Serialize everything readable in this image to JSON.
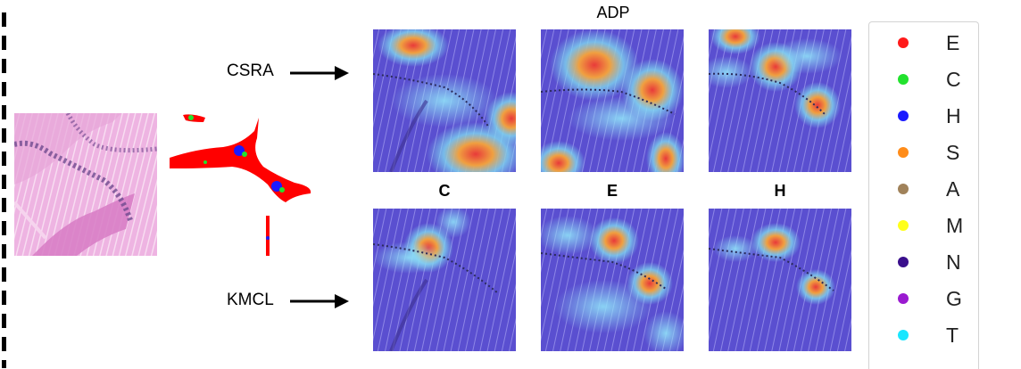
{
  "labels": {
    "method_top": "CSRA",
    "method_bottom": "KMCL",
    "dataset_title": "ADP",
    "subtitles": [
      "C",
      "E",
      "H"
    ]
  },
  "legend": {
    "items": [
      {
        "label": "E",
        "color": "#ff1a1a"
      },
      {
        "label": "C",
        "color": "#22e22e"
      },
      {
        "label": "H",
        "color": "#1a1aff"
      },
      {
        "label": "S",
        "color": "#ff8c1a"
      },
      {
        "label": "A",
        "color": "#a0825a"
      },
      {
        "label": "M",
        "color": "#ffff1a"
      },
      {
        "label": "N",
        "color": "#3a0f8c"
      },
      {
        "label": "G",
        "color": "#9a1ad0"
      },
      {
        "label": "T",
        "color": "#1ae6ff"
      }
    ]
  },
  "colors": {
    "tissue_pink": "#e9a9d9",
    "heatmap_base": "#5a4fd0",
    "segmentation_red": "#ff0000"
  }
}
